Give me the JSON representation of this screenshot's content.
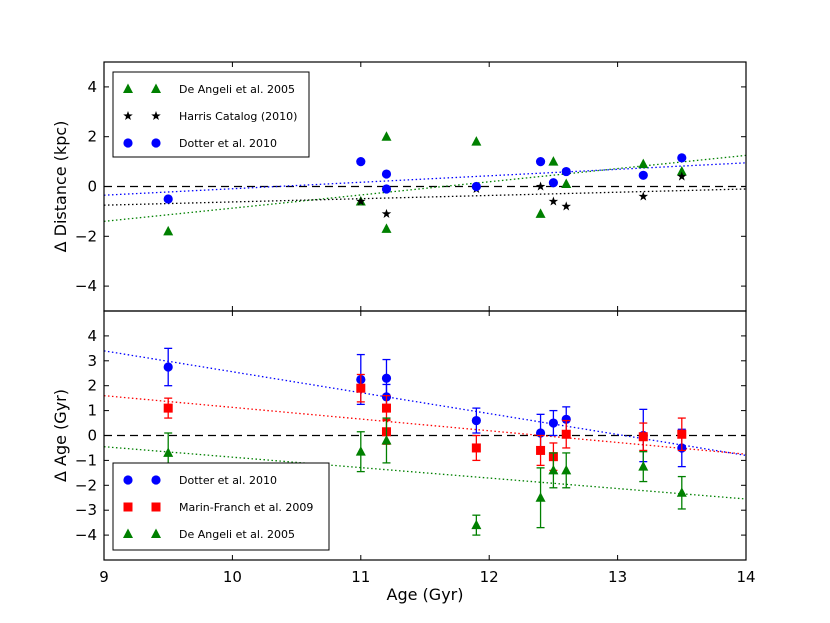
{
  "chart_data": {
    "type": "scatter",
    "xlabel": "Age (Gyr)",
    "xlim": [
      9,
      14
    ],
    "x_ticks": [
      9,
      10,
      11,
      12,
      13,
      14
    ],
    "x_tick_labels": [
      "9",
      "10",
      "11",
      "12",
      "13",
      "14"
    ],
    "colors": {
      "blue": "#0000ff",
      "green": "#008000",
      "red": "#ff0000",
      "black": "#000000"
    },
    "panels": [
      {
        "id": "distance",
        "ylabel": "Δ Distance (kpc)",
        "ylim": [
          -5,
          5
        ],
        "y_ticks": [
          -4,
          -2,
          0,
          2,
          4
        ],
        "y_tick_labels": [
          "−4",
          "−2",
          "0",
          "2",
          "4"
        ],
        "legend_position": "upper-left",
        "legend": [
          {
            "label": "De Angeli et al. 2005",
            "marker": "triangle",
            "color": "#008000"
          },
          {
            "label": "Harris Catalog (2010)",
            "marker": "star",
            "color": "#000000"
          },
          {
            "label": "Dotter et al. 2010",
            "marker": "circle",
            "color": "#0000ff"
          }
        ],
        "series": [
          {
            "name": "De Angeli et al. 2005",
            "marker": "triangle",
            "color": "#008000",
            "points": [
              [
                9.5,
                -1.8
              ],
              [
                11.0,
                -0.6
              ],
              [
                11.2,
                2.0
              ],
              [
                11.2,
                -1.7
              ],
              [
                11.9,
                1.8
              ],
              [
                12.4,
                -1.1
              ],
              [
                12.5,
                1.0
              ],
              [
                12.6,
                0.1
              ],
              [
                13.2,
                0.9
              ],
              [
                13.5,
                0.6
              ]
            ]
          },
          {
            "name": "Harris Catalog (2010)",
            "marker": "star",
            "color": "#000000",
            "points": [
              [
                11.0,
                -0.6
              ],
              [
                11.2,
                -1.1
              ],
              [
                11.9,
                -0.1
              ],
              [
                12.4,
                0.0
              ],
              [
                12.5,
                -0.6
              ],
              [
                12.6,
                -0.8
              ],
              [
                13.2,
                -0.4
              ],
              [
                13.5,
                0.4
              ]
            ]
          },
          {
            "name": "Dotter et al. 2010",
            "marker": "circle",
            "color": "#0000ff",
            "points": [
              [
                9.5,
                -0.5
              ],
              [
                11.0,
                1.0
              ],
              [
                11.2,
                0.5
              ],
              [
                11.2,
                -0.1
              ],
              [
                11.9,
                0.0
              ],
              [
                12.4,
                1.0
              ],
              [
                12.5,
                0.15
              ],
              [
                12.6,
                0.6
              ],
              [
                13.2,
                0.45
              ],
              [
                13.5,
                1.15
              ]
            ]
          }
        ],
        "trendlines": [
          {
            "color": "#0000ff",
            "from": [
              9,
              -0.35
            ],
            "to": [
              14,
              0.95
            ]
          },
          {
            "color": "#008000",
            "from": [
              9,
              -1.4
            ],
            "to": [
              14,
              1.25
            ]
          },
          {
            "color": "#000000",
            "from": [
              9,
              -0.75
            ],
            "to": [
              14,
              -0.1
            ]
          }
        ],
        "reference_line": 0
      },
      {
        "id": "age",
        "ylabel": "Δ Age (Gyr)",
        "ylim": [
          -5,
          5
        ],
        "y_ticks": [
          -4,
          -3,
          -2,
          -1,
          0,
          1,
          2,
          3,
          4
        ],
        "y_tick_labels": [
          "−4",
          "−3",
          "−2",
          "−1",
          "0",
          "1",
          "2",
          "3",
          "4"
        ],
        "legend_position": "lower-left",
        "legend": [
          {
            "label": "Dotter et al. 2010",
            "marker": "circle",
            "color": "#0000ff"
          },
          {
            "label": "Marin-Franch et al. 2009",
            "marker": "square",
            "color": "#ff0000"
          },
          {
            "label": "De Angeli et al. 2005",
            "marker": "triangle",
            "color": "#008000"
          }
        ],
        "series": [
          {
            "name": "Dotter et al. 2010",
            "marker": "circle",
            "color": "#0000ff",
            "points": [
              [
                9.5,
                2.75,
                0.75
              ],
              [
                11.0,
                2.25,
                1.0
              ],
              [
                11.2,
                2.3,
                0.75
              ],
              [
                11.2,
                1.55,
                0.5
              ],
              [
                11.9,
                0.6,
                0.5
              ],
              [
                12.4,
                0.1,
                0.75
              ],
              [
                12.5,
                0.5,
                0.5
              ],
              [
                12.6,
                0.65,
                0.5
              ],
              [
                13.2,
                0.0,
                1.05
              ],
              [
                13.5,
                -0.5,
                0.75
              ]
            ]
          },
          {
            "name": "Marin-Franch et al. 2009",
            "marker": "square",
            "color": "#ff0000",
            "points": [
              [
                9.5,
                1.1,
                0.4
              ],
              [
                11.0,
                1.9,
                0.55
              ],
              [
                11.2,
                1.1,
                0.5
              ],
              [
                11.2,
                0.15,
                0.5
              ],
              [
                11.9,
                -0.5,
                0.5
              ],
              [
                12.4,
                -0.6,
                0.6
              ],
              [
                12.5,
                -0.85,
                0.55
              ],
              [
                12.6,
                0.05,
                0.55
              ],
              [
                13.2,
                -0.05,
                0.55
              ],
              [
                13.5,
                0.05,
                0.65
              ]
            ]
          },
          {
            "name": "De Angeli et al. 2005",
            "marker": "triangle",
            "color": "#008000",
            "points": [
              [
                9.5,
                -0.7,
                0.8
              ],
              [
                11.0,
                -0.65,
                0.8
              ],
              [
                11.2,
                -0.2,
                0.9
              ],
              [
                11.9,
                -3.6,
                0.4
              ],
              [
                12.4,
                -2.5,
                1.2
              ],
              [
                12.5,
                -1.4,
                0.7
              ],
              [
                12.6,
                -1.4,
                0.7
              ],
              [
                13.2,
                -1.25,
                0.6
              ],
              [
                13.5,
                -2.3,
                0.65
              ]
            ]
          }
        ],
        "trendlines": [
          {
            "color": "#0000ff",
            "from": [
              9,
              3.4
            ],
            "to": [
              14,
              -0.8
            ]
          },
          {
            "color": "#ff0000",
            "from": [
              9,
              1.6
            ],
            "to": [
              14,
              -0.75
            ]
          },
          {
            "color": "#008000",
            "from": [
              9,
              -0.45
            ],
            "to": [
              14,
              -2.55
            ]
          }
        ],
        "reference_line": 0
      }
    ]
  }
}
